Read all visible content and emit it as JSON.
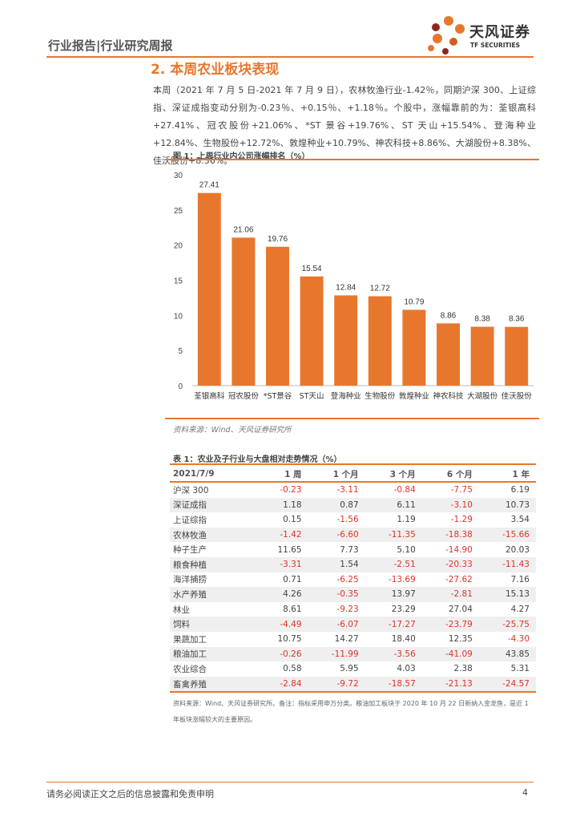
{
  "header": {
    "title": "行业报告|行业研究周报"
  },
  "logo": {
    "cn": "天风证券",
    "en": "TF SECURITIES"
  },
  "section": {
    "title": "2. 本周农业板块表现"
  },
  "paragraph": {
    "text": "本周（2021 年 7 月 5 日-2021 年 7 月 9 日），农林牧渔行业-1.42％，同期沪深 300、上证综指、深证成指变动分别为-0.23％、+0.15％、+1.18％。个股中，涨幅靠前的为：荃银高科+27.41%、冠农股份+21.06%、*ST 景谷+19.76%、ST 天山+15.54%、登海种业+12.84%、生物股份+12.72%、敦煌种业+10.79%、神农科技+8.86%、大湖股份+8.38%、佳沃股份+8.36%。"
  },
  "figure": {
    "title": "图 1：上周行业内公司涨幅排名（%）",
    "source": "资料来源：Wind、天风证券研究所"
  },
  "chart_data": {
    "type": "bar",
    "title": "图 1：上周行业内公司涨幅排名（%）",
    "categories": [
      "荃银高科",
      "冠农股份",
      "*ST景谷",
      "ST天山",
      "登海种业",
      "生物股份",
      "敦煌种业",
      "神农科技",
      "大湖股份",
      "佳沃股份"
    ],
    "values": [
      27.41,
      21.06,
      19.76,
      15.54,
      12.84,
      12.72,
      10.79,
      8.86,
      8.38,
      8.36
    ],
    "labels": [
      "27.41",
      "21.06",
      "19.76",
      "15.54",
      "12.84",
      "12.72",
      "10.79",
      "8.86",
      "8.38",
      "8.36"
    ],
    "ylim": [
      0,
      30
    ],
    "yticks": [
      "0",
      "5",
      "10",
      "15",
      "20",
      "25",
      "30"
    ],
    "bar_color": "#e8772e",
    "xlabel": "",
    "ylabel": ""
  },
  "table": {
    "title": "表 1：农业及子行业与大盘相对走势情况（%）",
    "headers": [
      "2021/7/9",
      "1 周",
      "1 个月",
      "3 个月",
      "6 个月",
      "1 年"
    ],
    "rows": [
      [
        "沪深 300",
        "-0.23",
        "-3.11",
        "-0.84",
        "-7.75",
        "6.19"
      ],
      [
        "深证成指",
        "1.18",
        "0.87",
        "6.11",
        "-3.10",
        "10.73"
      ],
      [
        "上证综指",
        "0.15",
        "-1.56",
        "1.19",
        "-1.29",
        "3.54"
      ],
      [
        "农林牧渔",
        "-1.42",
        "-6.60",
        "-11.35",
        "-18.38",
        "-15.66"
      ],
      [
        "种子生产",
        "11.65",
        "7.73",
        "5.10",
        "-14.90",
        "20.03"
      ],
      [
        "粮食种植",
        "-3.31",
        "1.54",
        "-2.51",
        "-20.33",
        "-11.43"
      ],
      [
        "海洋捕捞",
        "0.71",
        "-6.25",
        "-13.69",
        "-27.62",
        "7.16"
      ],
      [
        "水产养殖",
        "4.26",
        "-0.35",
        "13.97",
        "-2.81",
        "15.13"
      ],
      [
        "林业",
        "8.61",
        "-9.23",
        "23.29",
        "27.04",
        "4.27"
      ],
      [
        "饲料",
        "-4.49",
        "-6.07",
        "-17.27",
        "-23.79",
        "-25.75"
      ],
      [
        "果蔬加工",
        "10.75",
        "14.27",
        "18.40",
        "12.35",
        "-4.30"
      ],
      [
        "粮油加工",
        "-0.26",
        "-11.99",
        "-3.56",
        "-41.09",
        "43.85"
      ],
      [
        "农业综合",
        "0.58",
        "5.95",
        "4.03",
        "2.38",
        "5.31"
      ],
      [
        "畜禽养殖",
        "-2.84",
        "-9.72",
        "-18.57",
        "-21.13",
        "-24.57"
      ]
    ],
    "note": "资料来源：Wind、天风证券研究所。备注：指标采用申万分类。粮油加工板块于 2020 年 10 月 22 日新纳入金龙鱼，是近 1 年板块涨幅较大的主要原因。"
  },
  "footer": {
    "disclaimer": "请务必阅读正文之后的信息披露和免责申明",
    "page": "4"
  }
}
